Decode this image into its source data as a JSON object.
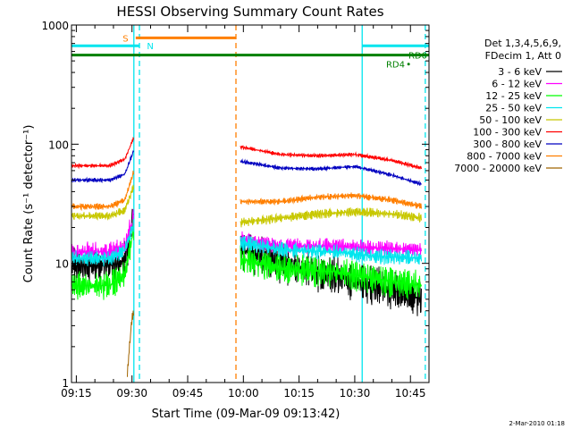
{
  "chart_data": {
    "type": "line",
    "title": "HESSI Observing Summary Count Rates",
    "xlabel": "Start Time (09-Mar-09 09:13:42)",
    "ylabel": "Count Rate (s⁻¹ detector⁻¹)",
    "x_ticks": [
      "09:15",
      "09:30",
      "09:45",
      "10:00",
      "10:15",
      "10:30",
      "10:45"
    ],
    "y_ticks": [
      "1",
      "10",
      "100",
      "1000"
    ],
    "y_scale": "log",
    "xlim": [
      "09:13:42",
      "10:50:00"
    ],
    "ylim": [
      1,
      1000
    ],
    "legend_header": [
      "Det 1,3,4,5,6,9,",
      "FDecim 1, Att 0"
    ],
    "legend_placement": "right",
    "footer": "2-Mar-2010 01:18",
    "colors": {
      "cyan": "#00e5ee",
      "green_bar": "#008000",
      "orange": "#ff7f00",
      "black": "#000000",
      "magenta": "#ff00ff",
      "green": "#00ff00",
      "yellow": "#c8c800",
      "red": "#ff0000",
      "blue": "#0000c0",
      "brown": "#a06400"
    },
    "annotations": [
      {
        "text": "S",
        "color": "#ff7f00"
      },
      {
        "text": "N",
        "color": "#00e5ee"
      },
      {
        "text": "RD0",
        "color": "#008000"
      },
      {
        "text": "RD4",
        "color": "#008000"
      }
    ],
    "state_bars": [
      {
        "label": "N",
        "color": "#00e5ee",
        "y": 670,
        "segments": [
          [
            "09:13:42",
            "09:32:00"
          ],
          [
            "10:32:00",
            "10:50:00"
          ]
        ]
      },
      {
        "label": "S",
        "color": "#ff7f00",
        "y": 780,
        "segments": [
          [
            "09:31:00",
            "09:58:00"
          ]
        ]
      },
      {
        "label": "RD",
        "color": "#008000",
        "y": 560,
        "segments": [
          [
            "09:13:42",
            "10:50:00"
          ]
        ]
      }
    ],
    "vlines": [
      {
        "time": "09:30:30",
        "color": "#00e5ee",
        "style": "solid"
      },
      {
        "time": "09:32:00",
        "color": "#00e5ee",
        "style": "dashed"
      },
      {
        "time": "09:58:00",
        "color": "#ff7f00",
        "style": "dashed"
      },
      {
        "time": "10:32:00",
        "color": "#00e5ee",
        "style": "solid"
      },
      {
        "time": "10:49:00",
        "color": "#00e5ee",
        "style": "dashed"
      }
    ],
    "series": [
      {
        "name": "3 - 6 keV",
        "color": "#000000",
        "segments": [
          {
            "t": [
              "09:13:42",
              "09:22:00",
              "09:27:00",
              "09:29:00",
              "09:30:30"
            ],
            "y": [
              9.5,
              9.5,
              10,
              14,
              28
            ],
            "noise": 0.45
          },
          {
            "t": [
              "09:59:00",
              "10:10:00",
              "10:20:00",
              "10:30:00",
              "10:40:00",
              "10:48:00"
            ],
            "y": [
              13,
              10,
              8.5,
              7,
              6,
              5
            ],
            "noise": 0.5
          }
        ]
      },
      {
        "name": "6 - 12 keV",
        "color": "#ff00ff",
        "segments": [
          {
            "t": [
              "09:13:42",
              "09:25:00",
              "09:28:00",
              "09:30:30"
            ],
            "y": [
              12.5,
              12.5,
              14,
              25
            ],
            "noise": 0.25
          },
          {
            "t": [
              "09:59:00",
              "10:10:00",
              "10:25:00",
              "10:35:00",
              "10:48:00"
            ],
            "y": [
              16,
              14,
              14,
              13.5,
              13
            ],
            "noise": 0.2
          }
        ]
      },
      {
        "name": "12 - 25 keV",
        "color": "#00ff00",
        "segments": [
          {
            "t": [
              "09:13:42",
              "09:24:00",
              "09:28:00",
              "09:30:30"
            ],
            "y": [
              6.5,
              6.5,
              8,
              20
            ],
            "noise": 0.35
          },
          {
            "t": [
              "09:59:00",
              "10:10:00",
              "10:25:00",
              "10:35:00",
              "10:48:00"
            ],
            "y": [
              11,
              9,
              8.5,
              7.5,
              6.5
            ],
            "noise": 0.4
          }
        ]
      },
      {
        "name": "25 - 50 keV",
        "color": "#00e5ee",
        "segments": [
          {
            "t": [
              "09:13:42",
              "09:24:00",
              "09:28:00",
              "09:30:30"
            ],
            "y": [
              11,
              11,
              13,
              22
            ],
            "noise": 0.2
          },
          {
            "t": [
              "09:59:00",
              "10:10:00",
              "10:25:00",
              "10:35:00",
              "10:48:00"
            ],
            "y": [
              15,
              13,
              12.5,
              11.5,
              11
            ],
            "noise": 0.2
          }
        ]
      },
      {
        "name": "50 - 100 keV",
        "color": "#c8c800",
        "segments": [
          {
            "t": [
              "09:13:42",
              "09:24:00",
              "09:28:00",
              "09:30:30"
            ],
            "y": [
              25,
              25,
              28,
              45
            ],
            "noise": 0.1
          },
          {
            "t": [
              "09:59:00",
              "10:10:00",
              "10:20:00",
              "10:30:00",
              "10:40:00",
              "10:48:00"
            ],
            "y": [
              22,
              24,
              26,
              27,
              26,
              24
            ],
            "noise": 0.12
          }
        ]
      },
      {
        "name": "100 - 300 keV",
        "color": "#ff0000",
        "segments": [
          {
            "t": [
              "09:13:42",
              "09:24:00",
              "09:28:00",
              "09:30:30"
            ],
            "y": [
              66,
              66,
              75,
              115
            ],
            "noise": 0.05
          },
          {
            "t": [
              "09:59:00",
              "10:10:00",
              "10:20:00",
              "10:30:00",
              "10:40:00",
              "10:48:00"
            ],
            "y": [
              95,
              82,
              80,
              82,
              73,
              63
            ],
            "noise": 0.05
          }
        ]
      },
      {
        "name": "300 - 800 keV",
        "color": "#0000c0",
        "segments": [
          {
            "t": [
              "09:13:42",
              "09:24:00",
              "09:28:00",
              "09:30:30"
            ],
            "y": [
              50,
              50,
              56,
              90
            ],
            "noise": 0.05
          },
          {
            "t": [
              "09:59:00",
              "10:10:00",
              "10:20:00",
              "10:30:00",
              "10:40:00",
              "10:48:00"
            ],
            "y": [
              72,
              63,
              62,
              65,
              55,
              46
            ],
            "noise": 0.05
          }
        ]
      },
      {
        "name": "800 - 7000 keV",
        "color": "#ff7f00",
        "segments": [
          {
            "t": [
              "09:13:42",
              "09:24:00",
              "09:28:00",
              "09:30:30"
            ],
            "y": [
              30,
              30,
              34,
              60
            ],
            "noise": 0.08
          },
          {
            "t": [
              "09:59:00",
              "10:10:00",
              "10:20:00",
              "10:30:00",
              "10:40:00",
              "10:48:00"
            ],
            "y": [
              33,
              33,
              36,
              37,
              34,
              30
            ],
            "noise": 0.08
          }
        ]
      },
      {
        "name": "7000 - 20000 keV",
        "color": "#a06400",
        "segments": [
          {
            "t": [
              "09:28:30",
              "09:29:30",
              "09:30:00",
              "09:30:30"
            ],
            "y": [
              1,
              2.5,
              3.5,
              4
            ],
            "noise": 0.1
          }
        ]
      }
    ]
  }
}
